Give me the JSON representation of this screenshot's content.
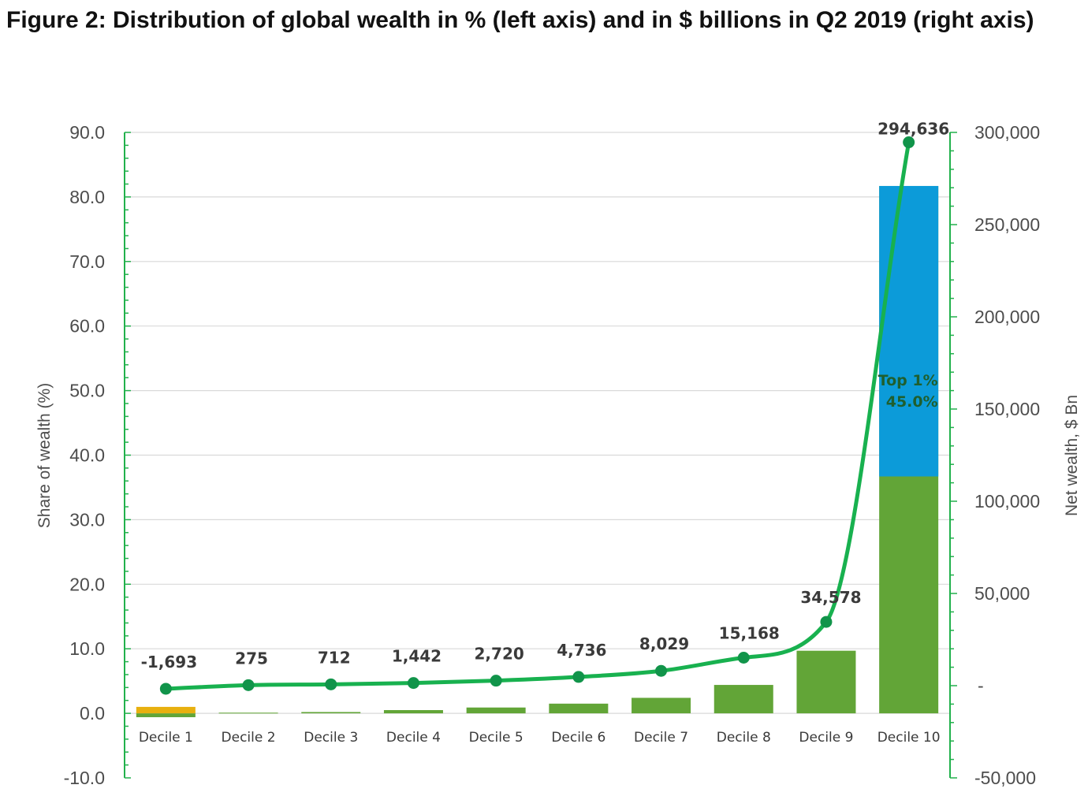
{
  "title": "Figure 2: Distribution of global wealth in % (left axis) and in $ billions in Q2 2019 (right axis)",
  "chart_data": {
    "type": "bar",
    "categories": [
      "Decile 1",
      "Decile 2",
      "Decile 3",
      "Decile 4",
      "Decile 5",
      "Decile 6",
      "Decile 7",
      "Decile 8",
      "Decile 9",
      "Decile 10"
    ],
    "bar_series": {
      "values": [
        -0.6,
        0.1,
        0.2,
        0.5,
        0.9,
        1.5,
        2.4,
        4.4,
        9.7,
        81.7
      ],
      "color": "#62a537"
    },
    "decile1_overlay_value": 1.0,
    "decile1_overlay_color": "#e8b00f",
    "top1_segment": {
      "category": "Decile 10",
      "from": 36.7,
      "to": 81.7,
      "color": "#0c9bd9",
      "label_line1": "Top 1%",
      "label_line2": "45.0%"
    },
    "line_series": {
      "axis": "right",
      "color": "#18b14f",
      "marker_color": "#11944a",
      "values": [
        -1693,
        275,
        712,
        1442,
        2720,
        4736,
        8029,
        15168,
        34578,
        294636
      ],
      "labels": [
        "-1,693",
        "275",
        "712",
        "1,442",
        "2,720",
        "4,736",
        "8,029",
        "15,168",
        "34,578",
        "294,636"
      ]
    },
    "left_axis": {
      "title": "Share of wealth  (%)",
      "ylim": [
        -10,
        90
      ],
      "ticks": [
        -10,
        0,
        10,
        20,
        30,
        40,
        50,
        60,
        70,
        80,
        90
      ],
      "tick_labels": [
        "-10.0",
        "0.0",
        "10.0",
        "20.0",
        "30.0",
        "40.0",
        "50.0",
        "60.0",
        "70.0",
        "80.0",
        "90.0"
      ]
    },
    "right_axis": {
      "title": "Net wealth, $ Bn",
      "ylim": [
        -50000,
        300000
      ],
      "ticks": [
        -50000,
        0,
        50000,
        100000,
        150000,
        200000,
        250000,
        300000
      ],
      "tick_labels": [
        "-50,000",
        "-",
        "50,000",
        "100,000",
        "150,000",
        "200,000",
        "250,000",
        "300,000"
      ]
    },
    "grid": true,
    "axis_color": "#22b14c",
    "grid_color": "#d9d9d9"
  }
}
